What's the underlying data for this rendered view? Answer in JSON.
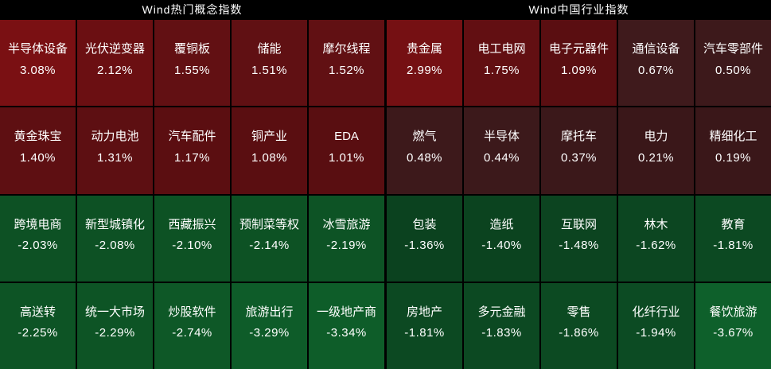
{
  "colors": {
    "background": "#000000",
    "grid_line": "#000000",
    "text": "#ffffff",
    "gain_strong": "#7a1013",
    "gain_weak": "#3a1719",
    "loss_weak": "#0b421f",
    "loss_strong": "#0e602b"
  },
  "chart_data": [
    {
      "type": "heatmap",
      "title": "Wind热门概念指数",
      "value_unit": "%",
      "legend_position": "none",
      "rows": [
        [
          {
            "label": "半导体设备",
            "value": 3.08,
            "display": "3.08%",
            "color": "#7a1013"
          },
          {
            "label": "光伏逆变器",
            "value": 2.12,
            "display": "2.12%",
            "color": "#6b0f12"
          },
          {
            "label": "覆铜板",
            "value": 1.55,
            "display": "1.55%",
            "color": "#621013"
          },
          {
            "label": "储能",
            "value": 1.51,
            "display": "1.51%",
            "color": "#601013"
          },
          {
            "label": "摩尔线程",
            "value": 1.52,
            "display": "1.52%",
            "color": "#611013"
          }
        ],
        [
          {
            "label": "黄金珠宝",
            "value": 1.4,
            "display": "1.40%",
            "color": "#5e0f12"
          },
          {
            "label": "动力电池",
            "value": 1.31,
            "display": "1.31%",
            "color": "#5d0f12"
          },
          {
            "label": "汽车配件",
            "value": 1.17,
            "display": "1.17%",
            "color": "#5b0e11"
          },
          {
            "label": "铜产业",
            "value": 1.08,
            "display": "1.08%",
            "color": "#5a0e11"
          },
          {
            "label": "EDA",
            "value": 1.01,
            "display": "1.01%",
            "color": "#590e11"
          }
        ],
        [
          {
            "label": "跨境电商",
            "value": -2.03,
            "display": "-2.03%",
            "color": "#0d5124"
          },
          {
            "label": "新型城镇化",
            "value": -2.08,
            "display": "-2.08%",
            "color": "#0d5124"
          },
          {
            "label": "西藏振兴",
            "value": -2.1,
            "display": "-2.10%",
            "color": "#0d5224"
          },
          {
            "label": "预制菜等权",
            "value": -2.14,
            "display": "-2.14%",
            "color": "#0d5224"
          },
          {
            "label": "冰雪旅游",
            "value": -2.19,
            "display": "-2.19%",
            "color": "#0d5325"
          }
        ],
        [
          {
            "label": "高送转",
            "value": -2.25,
            "display": "-2.25%",
            "color": "#0d5425"
          },
          {
            "label": "统一大市场",
            "value": -2.29,
            "display": "-2.29%",
            "color": "#0d5425"
          },
          {
            "label": "炒股软件",
            "value": -2.74,
            "display": "-2.74%",
            "color": "#0e5827"
          },
          {
            "label": "旅游出行",
            "value": -3.29,
            "display": "-3.29%",
            "color": "#0e5c29"
          },
          {
            "label": "一级地产商",
            "value": -3.34,
            "display": "-3.34%",
            "color": "#0e5d29"
          }
        ]
      ]
    },
    {
      "type": "heatmap",
      "title": "Wind中国行业指数",
      "value_unit": "%",
      "legend_position": "none",
      "rows": [
        [
          {
            "label": "贵金属",
            "value": 2.99,
            "display": "2.99%",
            "color": "#751013"
          },
          {
            "label": "电工电网",
            "value": 1.75,
            "display": "1.75%",
            "color": "#620f12"
          },
          {
            "label": "电子元器件",
            "value": 1.09,
            "display": "1.09%",
            "color": "#5a0e11"
          },
          {
            "label": "通信设备",
            "value": 0.67,
            "display": "0.67%",
            "color": "#3f1a1c"
          },
          {
            "label": "汽车零部件",
            "value": 0.5,
            "display": "0.50%",
            "color": "#3d191b"
          }
        ],
        [
          {
            "label": "燃气",
            "value": 0.48,
            "display": "0.48%",
            "color": "#3d191b"
          },
          {
            "label": "半导体",
            "value": 0.44,
            "display": "0.44%",
            "color": "#3c191b"
          },
          {
            "label": "摩托车",
            "value": 0.37,
            "display": "0.37%",
            "color": "#3b181a"
          },
          {
            "label": "电力",
            "value": 0.21,
            "display": "0.21%",
            "color": "#3a1719"
          },
          {
            "label": "精细化工",
            "value": 0.19,
            "display": "0.19%",
            "color": "#3a1719"
          }
        ],
        [
          {
            "label": "包装",
            "value": -1.36,
            "display": "-1.36%",
            "color": "#0b421f"
          },
          {
            "label": "造纸",
            "value": -1.4,
            "display": "-1.40%",
            "color": "#0b431f"
          },
          {
            "label": "互联网",
            "value": -1.48,
            "display": "-1.48%",
            "color": "#0c4420"
          },
          {
            "label": "林木",
            "value": -1.62,
            "display": "-1.62%",
            "color": "#0c4621"
          },
          {
            "label": "教育",
            "value": -1.81,
            "display": "-1.81%",
            "color": "#0c4922"
          }
        ],
        [
          {
            "label": "房地产",
            "value": -1.81,
            "display": "-1.81%",
            "color": "#0c4922"
          },
          {
            "label": "多元金融",
            "value": -1.83,
            "display": "-1.83%",
            "color": "#0c4922"
          },
          {
            "label": "零售",
            "value": -1.86,
            "display": "-1.86%",
            "color": "#0c4a22"
          },
          {
            "label": "化纤行业",
            "value": -1.94,
            "display": "-1.94%",
            "color": "#0c4b23"
          },
          {
            "label": "餐饮旅游",
            "value": -3.67,
            "display": "-3.67%",
            "color": "#0e602b"
          }
        ]
      ]
    }
  ]
}
